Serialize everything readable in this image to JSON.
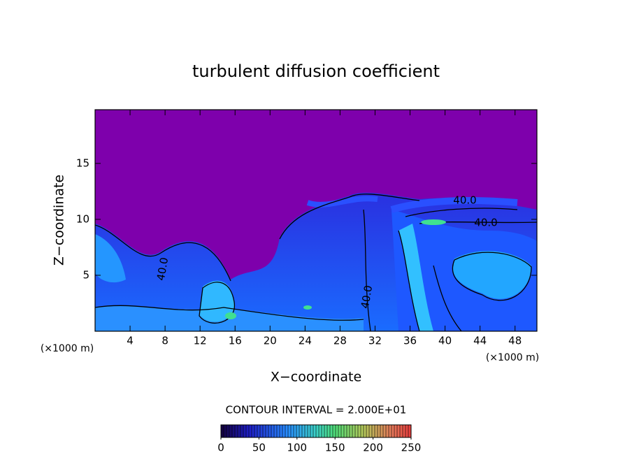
{
  "chart_data": {
    "type": "contour",
    "title": "turbulent diffusion coefficient",
    "x_label": "X−coordinate",
    "y_label": "Z−coordinate",
    "x_unit_labels": [
      "(×1000 m)",
      "(×1000 m)"
    ],
    "xlim": [
      0,
      50.5
    ],
    "xticks": [
      4,
      8,
      12,
      16,
      20,
      24,
      28,
      32,
      36,
      40,
      44,
      48
    ],
    "ylim": [
      0,
      19.8
    ],
    "yticks": [
      5,
      10,
      15
    ],
    "contour_labels": [
      "40.0",
      "40.0",
      "40.0",
      "40.0"
    ],
    "contour_interval_text": "CONTOUR INTERVAL = 2.000E+01",
    "colorbar": {
      "clim": [
        0,
        250
      ],
      "ticks": [
        0,
        50,
        100,
        150,
        200,
        250
      ]
    }
  }
}
